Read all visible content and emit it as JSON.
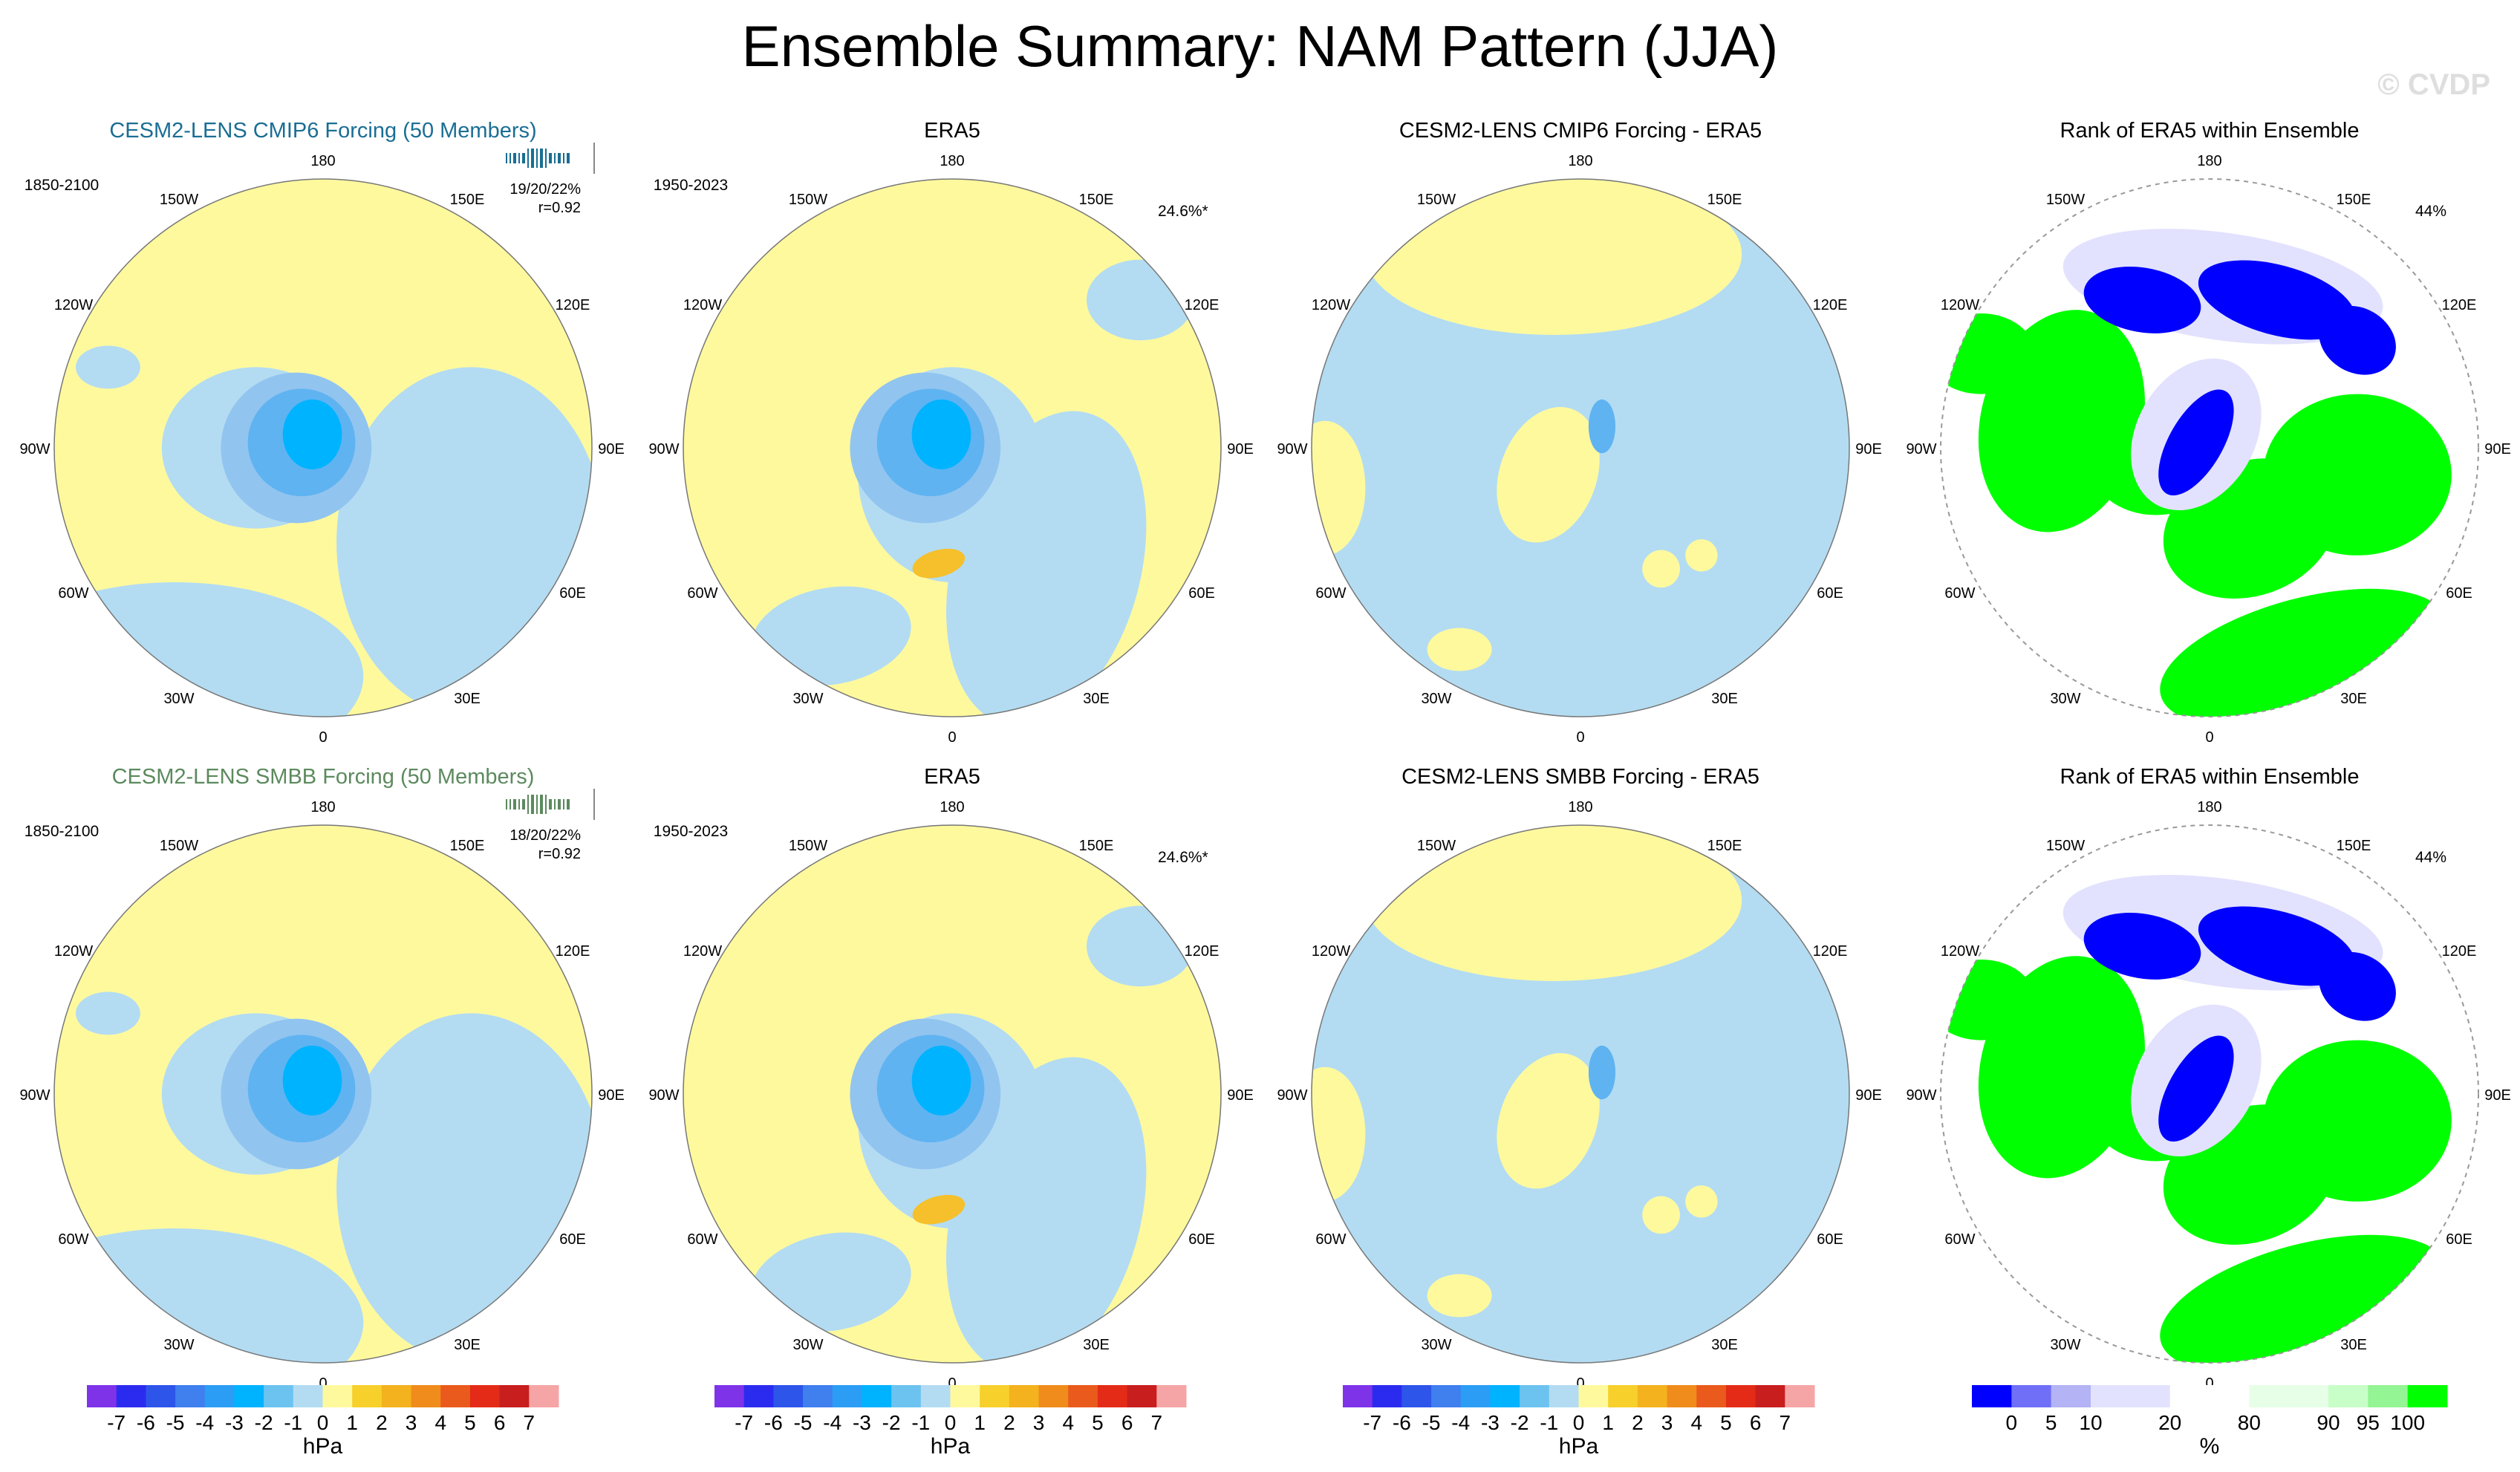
{
  "title": "Ensemble Summary: NAM Pattern (JJA)",
  "watermark": "© CVDP",
  "colors": {
    "yellow": "#fff99e",
    "lightblue": "#b3dcf2",
    "blue1": "#92c4f0",
    "blue2": "#5fb3f1",
    "blue3": "#00b3ff",
    "orange": "#f5c02b",
    "green": "#00ff00",
    "rankblue": "#0000ff",
    "rankmid": "#7f7fff",
    "ranklight": "#e2e2ff"
  },
  "lon_labels": [
    "180",
    "150E",
    "120E",
    "90E",
    "60E",
    "30E",
    "0",
    "30W",
    "60W",
    "90W",
    "120W",
    "150W"
  ],
  "panels": [
    {
      "id": "r1c1",
      "title": "CESM2-LENS CMIP6 Forcing (50 Members)",
      "title_color": "#1a6e94",
      "years": "1850-2100",
      "stat1": "19/20/22%",
      "stat2": "r=0.92",
      "pct": "",
      "kind": "ens",
      "strip_color": "#1a6e94"
    },
    {
      "id": "r1c2",
      "title": "ERA5",
      "title_color": "#000000",
      "years": "1950-2023",
      "stat1": "",
      "stat2": "",
      "pct": "24.6%*",
      "kind": "obs"
    },
    {
      "id": "r1c3",
      "title": "CESM2-LENS CMIP6 Forcing - ERA5",
      "title_color": "#000000",
      "years": "",
      "stat1": "",
      "stat2": "",
      "pct": "",
      "kind": "diff"
    },
    {
      "id": "r1c4",
      "title": "Rank of ERA5 within Ensemble",
      "title_color": "#000000",
      "years": "",
      "stat1": "",
      "stat2": "",
      "pct": "44%",
      "kind": "rank"
    },
    {
      "id": "r2c1",
      "title": "CESM2-LENS SMBB Forcing (50 Members)",
      "title_color": "#5c8a5e",
      "years": "1850-2100",
      "stat1": "18/20/22%",
      "stat2": "r=0.92",
      "pct": "",
      "kind": "ens",
      "strip_color": "#5c8a5e"
    },
    {
      "id": "r2c2",
      "title": "ERA5",
      "title_color": "#000000",
      "years": "1950-2023",
      "stat1": "",
      "stat2": "",
      "pct": "24.6%*",
      "kind": "obs"
    },
    {
      "id": "r2c3",
      "title": "CESM2-LENS SMBB Forcing - ERA5",
      "title_color": "#000000",
      "years": "",
      "stat1": "",
      "stat2": "",
      "pct": "",
      "kind": "diff"
    },
    {
      "id": "r2c4",
      "title": "Rank of ERA5 within Ensemble",
      "title_color": "#000000",
      "years": "",
      "stat1": "",
      "stat2": "",
      "pct": "44%",
      "kind": "rank"
    }
  ],
  "colorbars": [
    {
      "kind": "hpa",
      "unit": "hPa",
      "colors": [
        "#7f33e8",
        "#2b2bf0",
        "#2d55ea",
        "#3f7fee",
        "#2b9df5",
        "#00b3ff",
        "#6cc3f0",
        "#b3dcf2",
        "#fff99e",
        "#f7d02b",
        "#f3b21e",
        "#f08c1b",
        "#ea5a1c",
        "#e32b17",
        "#c81e1e",
        "#f5a5a5"
      ],
      "ticks": [
        "-7",
        "-6",
        "-5",
        "-4",
        "-3",
        "-2",
        "-1",
        "0",
        "1",
        "2",
        "3",
        "4",
        "5",
        "6",
        "7"
      ]
    },
    {
      "kind": "rank",
      "unit": "%",
      "colors": [
        "#0000ff",
        "#6f6ff7",
        "#b3b3f5",
        "#e2e2ff",
        "#e2e2ff",
        "#ffffff",
        "#ffffff",
        "#e6ffe6",
        "#e6ffe6",
        "#c8ffc8",
        "#93f593",
        "#00ff00"
      ],
      "ticks": [
        "0",
        "5",
        "10",
        "20",
        "80",
        "90",
        "95",
        "100"
      ],
      "tick_boundaries": [
        1,
        2,
        3,
        5,
        7,
        9,
        10,
        11
      ]
    }
  ]
}
